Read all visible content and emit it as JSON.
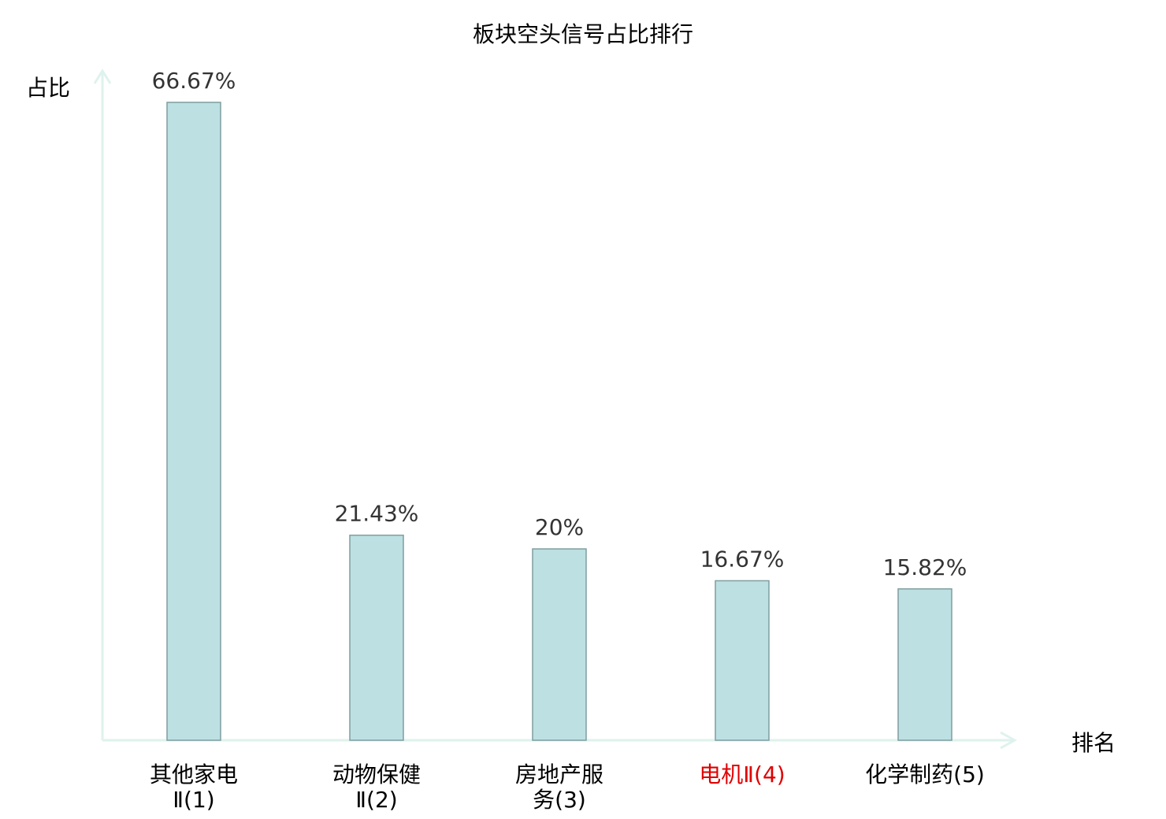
{
  "chart_data": {
    "type": "bar",
    "title": "板块空头信号占比排行",
    "xlabel": "排名",
    "ylabel": "占比",
    "ylim": [
      0,
      70
    ],
    "grid": false,
    "legend": "none",
    "categories": [
      {
        "name": "其他家电Ⅱ",
        "rank": "(1)",
        "lines": [
          "其他家电",
          "Ⅱ(1)"
        ],
        "highlight": false
      },
      {
        "name": "动物保健Ⅱ",
        "rank": "(2)",
        "lines": [
          "动物保健",
          "Ⅱ(2)"
        ],
        "highlight": false
      },
      {
        "name": "房地产服务",
        "rank": "(3)",
        "lines": [
          "房地产服",
          "务(3)"
        ],
        "highlight": false
      },
      {
        "name": "电机Ⅱ",
        "rank": "(4)",
        "lines": [
          "电机Ⅱ(4)"
        ],
        "highlight": true
      },
      {
        "name": "化学制药",
        "rank": "(5)",
        "lines": [
          "化学制药(5)"
        ],
        "highlight": false
      }
    ],
    "values": [
      66.67,
      21.43,
      20,
      16.67,
      15.82
    ],
    "value_labels": [
      "66.67%",
      "21.43%",
      "20%",
      "16.67%",
      "15.82%"
    ],
    "colors": {
      "bar_fill": "#bde0e2",
      "bar_stroke": "#7f9ea0",
      "axis": "#dff2ee",
      "label_text": "#333333",
      "highlight_text": "#e00000"
    }
  }
}
